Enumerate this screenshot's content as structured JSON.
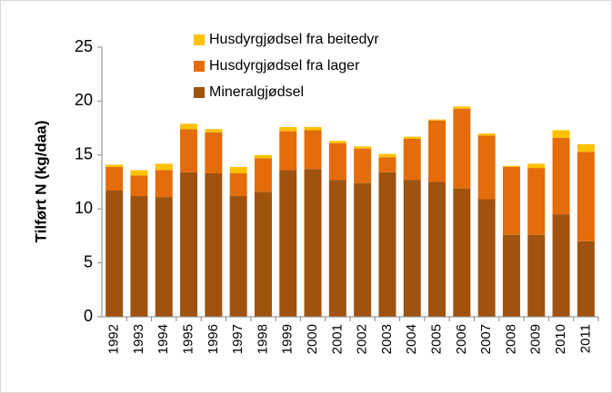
{
  "chart_data": {
    "type": "stacked_bar",
    "y_label": "Tilført N (kg/daa)",
    "categories": [
      "1992",
      "1993",
      "1994",
      "1995",
      "1996",
      "1997",
      "1998",
      "1999",
      "2000",
      "2001",
      "2002",
      "2003",
      "2004",
      "2005",
      "2006",
      "2007",
      "2008",
      "2009",
      "2010",
      "2011"
    ],
    "series": [
      {
        "name": "Mineralgjødsel",
        "color": "#a0520f",
        "values": [
          11.7,
          11.2,
          11.1,
          13.4,
          13.3,
          11.2,
          11.6,
          13.6,
          13.7,
          12.7,
          12.4,
          13.4,
          12.7,
          12.5,
          11.9,
          10.9,
          7.6,
          7.6,
          9.5,
          7.0
        ]
      },
      {
        "name": "Husdyrgjødsel fra lager",
        "color": "#e46c0a",
        "values": [
          2.2,
          1.9,
          2.5,
          4.0,
          3.8,
          2.1,
          3.1,
          3.6,
          3.6,
          3.4,
          3.2,
          1.4,
          3.8,
          5.7,
          7.4,
          5.9,
          6.3,
          6.2,
          7.1,
          8.3
        ]
      },
      {
        "name": "Husdyrgjødsel fra beitedyr",
        "color": "#ffc000",
        "values": [
          0.2,
          0.5,
          0.6,
          0.5,
          0.3,
          0.6,
          0.3,
          0.4,
          0.3,
          0.2,
          0.2,
          0.3,
          0.2,
          0.1,
          0.2,
          0.2,
          0.1,
          0.4,
          0.7,
          0.7
        ]
      }
    ],
    "ylim": [
      0,
      25
    ],
    "yticks": [
      0,
      5,
      10,
      15,
      20,
      25
    ],
    "legend": "top-left"
  }
}
